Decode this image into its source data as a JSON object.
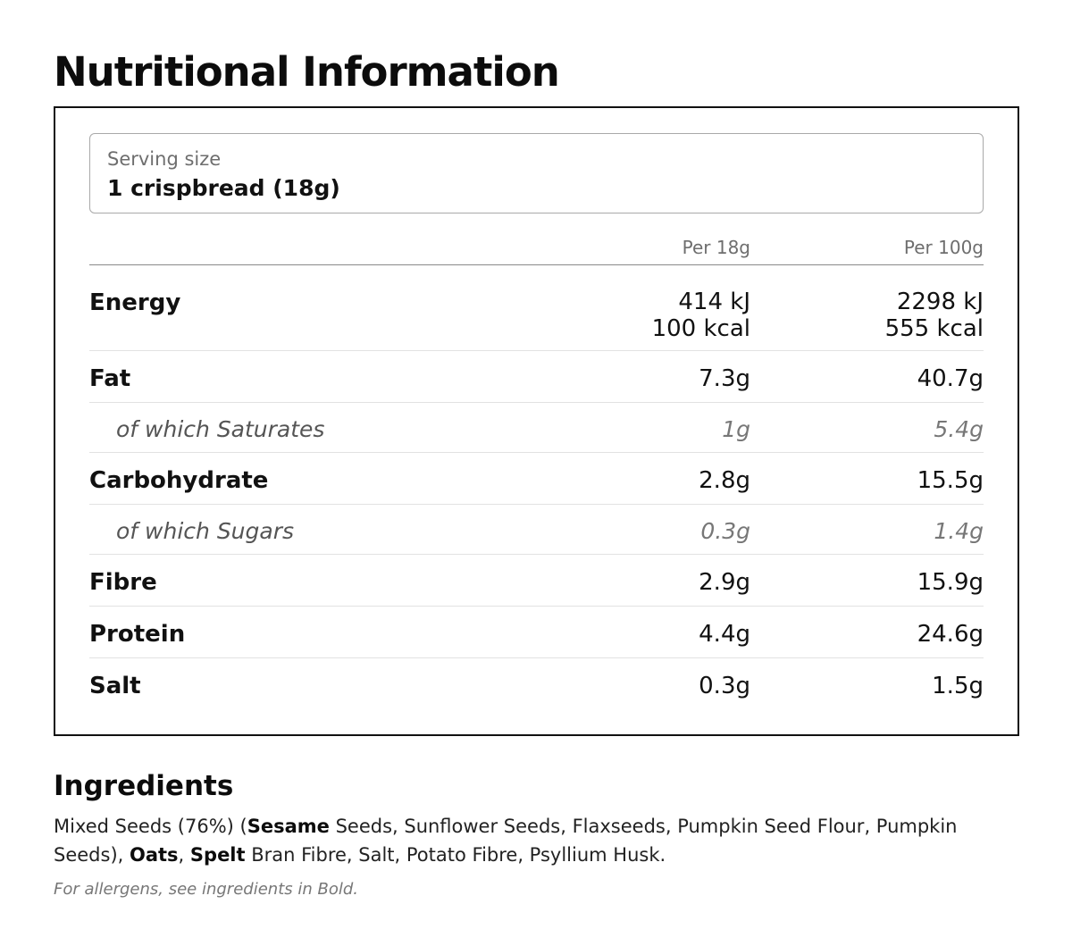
{
  "title": "Nutritional Information",
  "serving": {
    "label": "Serving size",
    "value": "1 crispbread (18g)"
  },
  "columns": {
    "per_serving": "Per 18g",
    "per_100g": "Per 100g"
  },
  "nutrients": {
    "energy": {
      "name": "Energy",
      "per_serving": [
        "414 kJ",
        "100 kcal"
      ],
      "per_100g": [
        "2298 kJ",
        "555 kcal"
      ]
    },
    "fat": {
      "name": "Fat",
      "per_serving": "7.3g",
      "per_100g": "40.7g"
    },
    "saturates": {
      "name": "of which Saturates",
      "per_serving": "1g",
      "per_100g": "5.4g"
    },
    "carbohydrate": {
      "name": "Carbohydrate",
      "per_serving": "2.8g",
      "per_100g": "15.5g"
    },
    "sugars": {
      "name": "of which Sugars",
      "per_serving": "0.3g",
      "per_100g": "1.4g"
    },
    "fibre": {
      "name": "Fibre",
      "per_serving": "2.9g",
      "per_100g": "15.9g"
    },
    "protein": {
      "name": "Protein",
      "per_serving": "4.4g",
      "per_100g": "24.6g"
    },
    "salt": {
      "name": "Salt",
      "per_serving": "0.3g",
      "per_100g": "1.5g"
    }
  },
  "ingredients": {
    "title": "Ingredients",
    "parts": [
      "Mixed Seeds (76%) (",
      "Sesame",
      " Seeds, Sunflower Seeds, Flaxseeds, Pumpkin Seed Flour, Pumpkin Seeds), ",
      "Oats",
      ", ",
      "Spelt",
      " Bran Fibre, Salt, Potato Fibre, Psyllium Husk."
    ],
    "allergen_note": "For allergens, see ingredients in Bold."
  }
}
